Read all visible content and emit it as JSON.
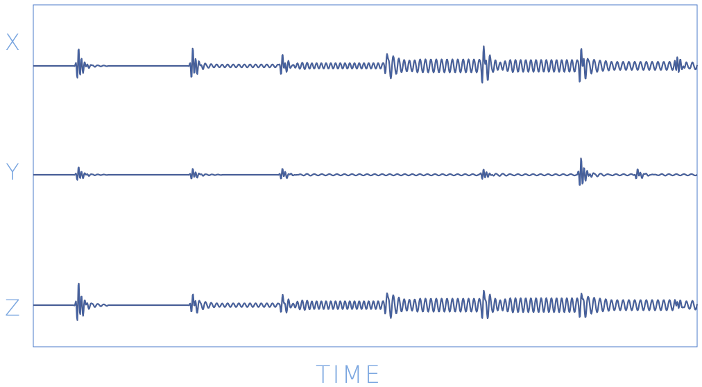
{
  "chart_data": {
    "type": "line",
    "title": "",
    "xlabel": "TIME",
    "ylabel": "",
    "grid": false,
    "legend": "none",
    "xlim": [
      0,
      100
    ],
    "x_ticks": [],
    "series": [
      {
        "name": "X",
        "baseline": 0,
        "events": [
          {
            "t": 6.8,
            "amp": 1.0,
            "ring": 0.15
          },
          {
            "t": 24.0,
            "amp": 1.0,
            "ring": 0.15
          },
          {
            "t": 37.5,
            "amp": 0.6,
            "ring": 0.15
          },
          {
            "t": 53.2,
            "amp": 0.4,
            "ring": 0.35
          },
          {
            "t": 67.8,
            "amp": 0.9,
            "ring": 0.45
          },
          {
            "t": 82.5,
            "amp": 0.9,
            "ring": 0.35
          },
          {
            "t": 97.0,
            "amp": 0.6,
            "ring": 0.25
          }
        ],
        "oscillation_segments": [
          {
            "t_start": 24.0,
            "t_end": 37.5,
            "amp": 0.08,
            "cycles": 16
          },
          {
            "t_start": 37.5,
            "t_end": 53.2,
            "amp": 0.15,
            "cycles": 22
          },
          {
            "t_start": 53.2,
            "t_end": 67.8,
            "amp": 0.35,
            "cycles": 18
          },
          {
            "t_start": 67.8,
            "t_end": 82.5,
            "amp": 0.32,
            "cycles": 19
          },
          {
            "t_start": 82.5,
            "t_end": 100.0,
            "amp": 0.22,
            "cycles": 20
          }
        ]
      },
      {
        "name": "Y",
        "baseline": 0,
        "events": [
          {
            "t": 6.8,
            "amp": 0.45,
            "ring": 0.1
          },
          {
            "t": 24.0,
            "amp": 0.35,
            "ring": 0.1
          },
          {
            "t": 37.5,
            "amp": 0.35,
            "ring": 0.1
          },
          {
            "t": 67.8,
            "amp": 0.35,
            "ring": 0.1
          },
          {
            "t": 82.5,
            "amp": 1.0,
            "ring": 0.15
          },
          {
            "t": 91.0,
            "amp": 0.3,
            "ring": 0.1
          }
        ],
        "oscillation_segments": [
          {
            "t_start": 37.5,
            "t_end": 100.0,
            "amp": 0.04,
            "cycles": 55
          }
        ]
      },
      {
        "name": "Z",
        "baseline": 0,
        "events": [
          {
            "t": 6.8,
            "amp": 1.0,
            "ring": 0.25
          },
          {
            "t": 24.0,
            "amp": 0.45,
            "ring": 0.2
          },
          {
            "t": 37.5,
            "amp": 0.35,
            "ring": 0.2
          },
          {
            "t": 53.2,
            "amp": 0.3,
            "ring": 0.3
          },
          {
            "t": 67.8,
            "amp": 0.45,
            "ring": 0.3
          },
          {
            "t": 82.5,
            "amp": 0.35,
            "ring": 0.3
          },
          {
            "t": 97.0,
            "amp": 0.25,
            "ring": 0.25
          }
        ],
        "oscillation_segments": [
          {
            "t_start": 24.0,
            "t_end": 37.5,
            "amp": 0.08,
            "cycles": 16
          },
          {
            "t_start": 37.5,
            "t_end": 53.2,
            "amp": 0.17,
            "cycles": 22
          },
          {
            "t_start": 53.2,
            "t_end": 67.8,
            "amp": 0.28,
            "cycles": 18
          },
          {
            "t_start": 67.8,
            "t_end": 82.5,
            "amp": 0.3,
            "cycles": 19
          },
          {
            "t_start": 82.5,
            "t_end": 100.0,
            "amp": 0.22,
            "cycles": 20
          }
        ]
      }
    ]
  },
  "colors": {
    "trace": "#4a5a8a",
    "trace_highlight": "#3f6fc4",
    "frame": "#4a78c8",
    "label": "#7aa6e0",
    "background": "#ffffff"
  }
}
